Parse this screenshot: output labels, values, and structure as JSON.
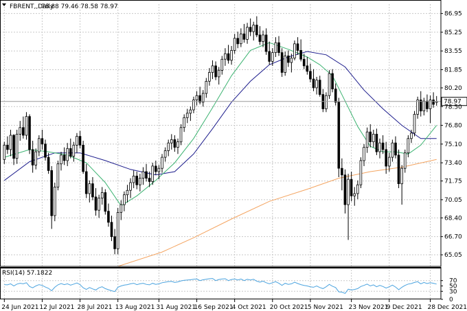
{
  "chart_data": {
    "type": "candlestick",
    "header": {
      "symbol_label": "FBRENT,,Daily",
      "ohlc_label": "78.88 79.46 78.58 78.97"
    },
    "price_axis": {
      "ylim": [
        64.0,
        87.8
      ],
      "ticks": [
        "86.95",
        "85.25",
        "83.55",
        "81.85",
        "80.20",
        "78.50",
        "76.80",
        "75.10",
        "73.40",
        "71.75",
        "70.05",
        "68.40",
        "66.70",
        "65.05"
      ],
      "current_price_label": "78.97",
      "current_price": 78.97
    },
    "x_axis": {
      "labels": [
        "24 Jun 2021",
        "12 Jul 2021",
        "28 Jul 2021",
        "13 Aug 2021",
        "31 Aug 2021",
        "16 Sep 2021",
        "4 Oct 2021",
        "20 Oct 2021",
        "5 Nov 2021",
        "23 Nov 2021",
        "9 Dec 2021",
        "28 Dec 2021"
      ],
      "label_bar_index": [
        0,
        12,
        24,
        36,
        49,
        61,
        73,
        85,
        97,
        110,
        122,
        135
      ]
    },
    "colors": {
      "bull": "#ffffff",
      "bear": "#000000",
      "fast_ma": "#3cb371",
      "slow_ma": "#1c1c8c",
      "long_ma": "#f4a460",
      "rsi": "#4aa3df",
      "grid": "#c8c8c8"
    },
    "candles": [
      [
        73.7,
        75.3,
        73.3,
        75.0
      ],
      [
        75.0,
        75.8,
        74.2,
        74.6
      ],
      [
        74.6,
        76.4,
        74.0,
        75.9
      ],
      [
        75.9,
        76.0,
        73.2,
        73.8
      ],
      [
        73.8,
        76.4,
        73.3,
        76.0
      ],
      [
        76.0,
        77.2,
        75.4,
        76.6
      ],
      [
        76.6,
        77.6,
        75.6,
        75.9
      ],
      [
        75.9,
        78.0,
        75.5,
        77.6
      ],
      [
        77.6,
        77.8,
        74.2,
        74.6
      ],
      [
        74.6,
        75.4,
        72.5,
        73.2
      ],
      [
        73.2,
        74.7,
        72.8,
        74.4
      ],
      [
        74.4,
        75.9,
        74.0,
        75.6
      ],
      [
        75.6,
        76.4,
        74.6,
        75.1
      ],
      [
        75.1,
        75.5,
        73.6,
        73.9
      ],
      [
        73.9,
        74.3,
        72.4,
        72.7
      ],
      [
        72.7,
        73.1,
        67.4,
        68.6
      ],
      [
        68.6,
        71.6,
        68.1,
        71.2
      ],
      [
        71.2,
        73.6,
        70.9,
        73.3
      ],
      [
        73.3,
        74.4,
        72.7,
        74.1
      ],
      [
        74.1,
        74.8,
        73.2,
        73.6
      ],
      [
        73.6,
        75.2,
        73.1,
        74.7
      ],
      [
        74.7,
        75.6,
        73.8,
        74.0
      ],
      [
        74.0,
        75.3,
        73.5,
        75.0
      ],
      [
        75.0,
        76.1,
        74.3,
        75.8
      ],
      [
        75.8,
        76.3,
        74.7,
        75.0
      ],
      [
        75.0,
        75.4,
        72.4,
        72.6
      ],
      [
        72.6,
        73.3,
        70.2,
        70.6
      ],
      [
        70.6,
        71.8,
        69.8,
        71.5
      ],
      [
        71.5,
        72.1,
        70.0,
        70.3
      ],
      [
        70.3,
        71.1,
        68.6,
        69.1
      ],
      [
        69.1,
        70.5,
        68.4,
        70.2
      ],
      [
        70.2,
        71.2,
        69.6,
        70.7
      ],
      [
        70.7,
        71.0,
        68.7,
        69.0
      ],
      [
        69.0,
        69.7,
        67.6,
        68.0
      ],
      [
        68.0,
        68.6,
        66.3,
        66.7
      ],
      [
        66.7,
        67.4,
        65.1,
        65.6
      ],
      [
        65.6,
        69.3,
        65.1,
        68.9
      ],
      [
        68.9,
        70.0,
        68.2,
        69.6
      ],
      [
        69.6,
        70.8,
        69.0,
        70.5
      ],
      [
        70.5,
        71.4,
        69.8,
        70.9
      ],
      [
        70.9,
        72.0,
        70.2,
        71.6
      ],
      [
        71.6,
        72.7,
        71.1,
        72.2
      ],
      [
        72.2,
        72.6,
        71.0,
        71.4
      ],
      [
        71.4,
        72.4,
        70.8,
        72.0
      ],
      [
        72.0,
        73.0,
        71.4,
        72.6
      ],
      [
        72.6,
        73.3,
        71.7,
        72.0
      ],
      [
        72.0,
        72.6,
        71.2,
        71.7
      ],
      [
        71.7,
        73.4,
        71.4,
        73.1
      ],
      [
        73.1,
        73.6,
        72.3,
        72.6
      ],
      [
        72.6,
        73.2,
        71.9,
        72.9
      ],
      [
        72.9,
        74.2,
        72.5,
        73.9
      ],
      [
        73.9,
        74.8,
        73.5,
        74.5
      ],
      [
        74.5,
        75.5,
        74.0,
        75.2
      ],
      [
        75.2,
        76.0,
        74.6,
        75.5
      ],
      [
        75.5,
        75.9,
        74.4,
        74.8
      ],
      [
        74.8,
        75.6,
        74.2,
        75.3
      ],
      [
        75.3,
        76.9,
        75.0,
        76.6
      ],
      [
        76.6,
        77.8,
        76.2,
        77.5
      ],
      [
        77.5,
        78.3,
        77.0,
        77.9
      ],
      [
        77.9,
        78.5,
        77.2,
        78.2
      ],
      [
        78.2,
        79.4,
        77.9,
        79.1
      ],
      [
        79.1,
        79.9,
        78.6,
        79.5
      ],
      [
        79.5,
        80.3,
        78.7,
        78.9
      ],
      [
        78.9,
        80.0,
        78.5,
        79.7
      ],
      [
        79.7,
        81.1,
        79.3,
        80.8
      ],
      [
        80.8,
        82.0,
        80.4,
        81.6
      ],
      [
        81.6,
        82.7,
        81.0,
        82.2
      ],
      [
        82.2,
        82.6,
        80.9,
        81.2
      ],
      [
        81.2,
        82.1,
        80.5,
        81.8
      ],
      [
        81.8,
        83.1,
        81.4,
        82.8
      ],
      [
        82.8,
        83.8,
        82.2,
        83.3
      ],
      [
        83.3,
        84.1,
        82.4,
        82.7
      ],
      [
        82.7,
        84.0,
        82.3,
        83.6
      ],
      [
        83.6,
        85.1,
        83.3,
        84.7
      ],
      [
        84.7,
        85.3,
        83.8,
        84.2
      ],
      [
        84.2,
        85.6,
        83.9,
        85.1
      ],
      [
        85.1,
        86.0,
        84.3,
        84.6
      ],
      [
        84.6,
        86.1,
        84.2,
        85.7
      ],
      [
        85.7,
        86.5,
        84.9,
        85.3
      ],
      [
        85.3,
        86.2,
        84.5,
        85.9
      ],
      [
        85.9,
        86.7,
        84.8,
        85.0
      ],
      [
        85.0,
        85.8,
        84.1,
        84.4
      ],
      [
        84.4,
        85.4,
        83.9,
        85.0
      ],
      [
        85.0,
        85.6,
        83.2,
        83.5
      ],
      [
        83.5,
        84.4,
        82.3,
        82.6
      ],
      [
        82.6,
        83.8,
        82.2,
        83.4
      ],
      [
        83.4,
        84.8,
        83.0,
        84.3
      ],
      [
        84.3,
        84.9,
        83.1,
        83.4
      ],
      [
        83.4,
        83.8,
        81.2,
        81.6
      ],
      [
        81.6,
        83.5,
        81.3,
        83.1
      ],
      [
        83.1,
        83.6,
        82.1,
        82.5
      ],
      [
        82.5,
        83.3,
        81.6,
        82.9
      ],
      [
        82.9,
        84.5,
        82.7,
        84.2
      ],
      [
        84.2,
        84.8,
        83.2,
        83.6
      ],
      [
        83.6,
        84.6,
        82.6,
        82.8
      ],
      [
        82.8,
        83.3,
        81.9,
        82.2
      ],
      [
        82.2,
        83.0,
        81.4,
        81.7
      ],
      [
        81.7,
        82.4,
        80.7,
        81.0
      ],
      [
        81.0,
        81.9,
        79.9,
        80.2
      ],
      [
        80.2,
        81.2,
        79.6,
        80.9
      ],
      [
        80.9,
        81.3,
        79.4,
        79.6
      ],
      [
        79.6,
        80.1,
        78.0,
        78.3
      ],
      [
        78.3,
        79.8,
        78.0,
        79.5
      ],
      [
        79.5,
        81.8,
        79.2,
        81.5
      ],
      [
        81.5,
        81.9,
        79.8,
        80.1
      ],
      [
        80.1,
        80.6,
        78.6,
        78.9
      ],
      [
        78.9,
        79.3,
        72.1,
        72.9
      ],
      [
        72.9,
        73.8,
        70.9,
        72.3
      ],
      [
        72.3,
        72.8,
        68.8,
        69.6
      ],
      [
        69.6,
        72.4,
        66.4,
        71.9
      ],
      [
        71.9,
        72.6,
        69.9,
        70.4
      ],
      [
        70.4,
        71.2,
        69.5,
        70.6
      ],
      [
        70.6,
        71.8,
        70.1,
        71.4
      ],
      [
        71.4,
        73.9,
        71.1,
        73.6
      ],
      [
        73.6,
        75.1,
        73.1,
        74.8
      ],
      [
        74.8,
        76.6,
        74.3,
        76.2
      ],
      [
        76.2,
        76.9,
        74.8,
        75.3
      ],
      [
        75.3,
        76.4,
        74.8,
        76.0
      ],
      [
        76.0,
        76.5,
        74.1,
        74.4
      ],
      [
        74.4,
        75.6,
        73.8,
        75.2
      ],
      [
        75.2,
        75.9,
        74.2,
        74.6
      ],
      [
        74.6,
        75.3,
        72.4,
        73.1
      ],
      [
        73.1,
        74.3,
        72.6,
        73.9
      ],
      [
        73.9,
        75.5,
        73.5,
        75.2
      ],
      [
        75.2,
        75.8,
        73.8,
        74.1
      ],
      [
        74.1,
        74.6,
        71.1,
        71.5
      ],
      [
        71.5,
        73.2,
        69.6,
        72.9
      ],
      [
        72.9,
        74.6,
        72.5,
        74.3
      ],
      [
        74.3,
        75.9,
        73.9,
        75.6
      ],
      [
        75.6,
        76.4,
        75.2,
        76.1
      ],
      [
        76.1,
        78.1,
        75.8,
        77.8
      ],
      [
        77.8,
        79.4,
        77.4,
        79.1
      ],
      [
        79.1,
        79.9,
        77.6,
        78.1
      ],
      [
        78.1,
        79.3,
        77.7,
        79.0
      ],
      [
        79.0,
        79.6,
        78.0,
        78.3
      ],
      [
        78.3,
        79.5,
        77.0,
        79.1
      ],
      [
        79.1,
        79.8,
        78.4,
        78.7
      ],
      [
        78.88,
        79.46,
        78.58,
        78.97
      ]
    ],
    "indicators": {
      "fast_ma": [
        [
          0,
          73.9
        ],
        [
          8,
          74.6
        ],
        [
          14,
          74.4
        ],
        [
          20,
          74.1
        ],
        [
          26,
          73.4
        ],
        [
          32,
          71.6
        ],
        [
          37,
          69.5
        ],
        [
          42,
          70.4
        ],
        [
          48,
          71.8
        ],
        [
          54,
          73.4
        ],
        [
          60,
          75.6
        ],
        [
          66,
          78.4
        ],
        [
          72,
          81.3
        ],
        [
          78,
          83.6
        ],
        [
          84,
          84.3
        ],
        [
          90,
          83.7
        ],
        [
          96,
          83.0
        ],
        [
          100,
          82.3
        ],
        [
          104,
          81.3
        ],
        [
          108,
          79.0
        ],
        [
          112,
          76.7
        ],
        [
          116,
          74.9
        ],
        [
          120,
          74.4
        ],
        [
          124,
          74.4
        ],
        [
          128,
          74.2
        ],
        [
          132,
          75.0
        ],
        [
          137,
          76.8
        ]
      ],
      "slow_ma": [
        [
          0,
          71.8
        ],
        [
          8,
          73.5
        ],
        [
          16,
          74.3
        ],
        [
          24,
          74.3
        ],
        [
          32,
          73.6
        ],
        [
          40,
          72.8
        ],
        [
          48,
          72.3
        ],
        [
          54,
          72.6
        ],
        [
          60,
          74.2
        ],
        [
          66,
          76.5
        ],
        [
          72,
          78.9
        ],
        [
          78,
          80.8
        ],
        [
          84,
          82.3
        ],
        [
          90,
          83.0
        ],
        [
          96,
          83.5
        ],
        [
          102,
          83.2
        ],
        [
          108,
          82.1
        ],
        [
          114,
          80.0
        ],
        [
          120,
          78.3
        ],
        [
          126,
          76.8
        ],
        [
          132,
          75.6
        ],
        [
          137,
          75.6
        ]
      ],
      "long_ma": [
        [
          36,
          64.0
        ],
        [
          50,
          65.3
        ],
        [
          60,
          66.6
        ],
        [
          72,
          68.3
        ],
        [
          84,
          69.9
        ],
        [
          96,
          71.0
        ],
        [
          106,
          72.0
        ],
        [
          116,
          72.6
        ],
        [
          126,
          73.0
        ],
        [
          137,
          73.7
        ]
      ]
    },
    "rsi": {
      "label": "RSI(14) 57.1822",
      "ticks": [
        "70",
        "50",
        "30",
        "0"
      ],
      "ylim": [
        0,
        100
      ],
      "values": [
        55,
        54,
        58,
        50,
        57,
        60,
        58,
        62,
        48,
        43,
        50,
        55,
        52,
        46,
        41,
        32,
        45,
        54,
        59,
        55,
        58,
        53,
        57,
        61,
        55,
        43,
        37,
        44,
        39,
        35,
        43,
        47,
        40,
        36,
        32,
        29,
        45,
        50,
        53,
        55,
        58,
        60,
        55,
        58,
        60,
        56,
        54,
        60,
        56,
        58,
        62,
        64,
        66,
        67,
        63,
        65,
        69,
        71,
        72,
        73,
        75,
        76,
        70,
        73,
        75,
        77,
        78,
        70,
        74,
        76,
        77,
        70,
        74,
        76,
        72,
        76,
        70,
        75,
        72,
        75,
        68,
        64,
        68,
        62,
        58,
        62,
        66,
        60,
        52,
        60,
        56,
        58,
        64,
        59,
        55,
        52,
        50,
        47,
        45,
        50,
        44,
        40,
        47,
        56,
        49,
        44,
        28,
        27,
        22,
        38,
        35,
        37,
        40,
        48,
        52,
        57,
        50,
        54,
        47,
        52,
        48,
        42,
        47,
        53,
        46,
        36,
        45,
        52,
        57,
        59,
        63,
        66,
        58,
        63,
        59,
        62,
        60,
        57
      ]
    }
  }
}
